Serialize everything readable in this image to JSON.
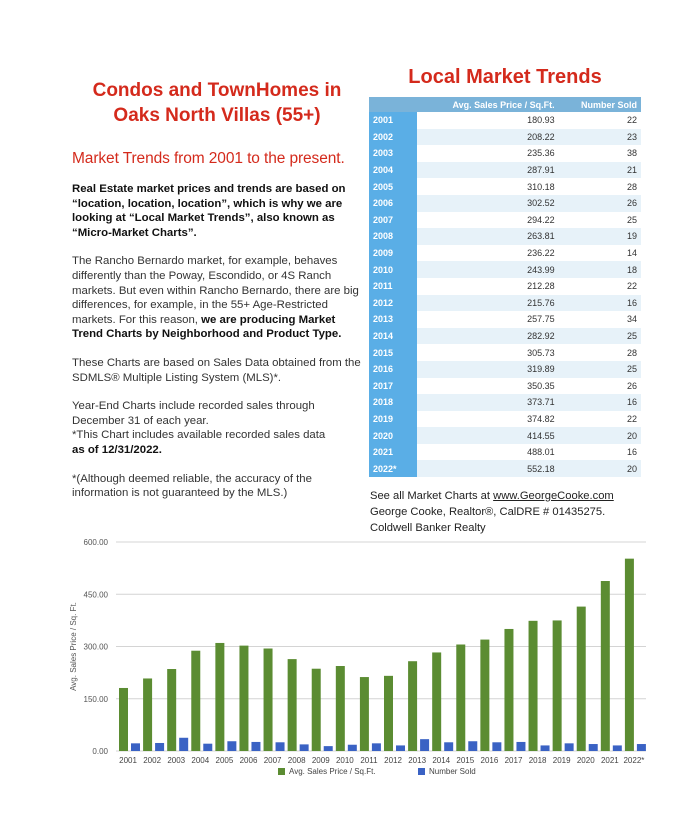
{
  "header": {
    "title": "Condos and TownHomes in\nOaks North Villas (55+)",
    "subtitle": "Market Trends from 2001 to the present."
  },
  "text": {
    "p1": "Real Estate market prices and trends are based on “location, location, location”, which is why we are looking at “Local Market Trends”, also known as “Micro-Market Charts”.",
    "p2_a": "The Rancho Bernardo market, for example, behaves differently than the Poway, Escondido, or 4S Ranch markets.  But even within Rancho Bernardo, there are big differences, for example, in the 55+ Age-Restricted markets. For this reason, ",
    "p2_b": "we are producing Market Trend Charts by Neighborhood and Product Type.",
    "p3": "These Charts are based on Sales Data obtained from the SDMLS® Multiple Listing System (MLS)*.",
    "p4_a": "Year-End Charts include recorded sales through December 31 of each year.",
    "p4_b": "*This Chart includes available recorded sales data",
    "p4_c": "as of 12/31/2022.",
    "p5": "*(Although deemed reliable, the accuracy of the information is not guaranteed by the MLS.)"
  },
  "table": {
    "title": "Local Market Trends",
    "col_year": "",
    "col_price": "Avg. Sales Price / Sq.Ft.",
    "col_sold": "Number Sold",
    "rows": [
      {
        "year": "2001",
        "price": "180.93",
        "sold": "22"
      },
      {
        "year": "2002",
        "price": "208.22",
        "sold": "23"
      },
      {
        "year": "2003",
        "price": "235.36",
        "sold": "38"
      },
      {
        "year": "2004",
        "price": "287.91",
        "sold": "21"
      },
      {
        "year": "2005",
        "price": "310.18",
        "sold": "28"
      },
      {
        "year": "2006",
        "price": "302.52",
        "sold": "26"
      },
      {
        "year": "2007",
        "price": "294.22",
        "sold": "25"
      },
      {
        "year": "2008",
        "price": "263.81",
        "sold": "19"
      },
      {
        "year": "2009",
        "price": "236.22",
        "sold": "14"
      },
      {
        "year": "2010",
        "price": "243.99",
        "sold": "18"
      },
      {
        "year": "2011",
        "price": "212.28",
        "sold": "22"
      },
      {
        "year": "2012",
        "price": "215.76",
        "sold": "16"
      },
      {
        "year": "2013",
        "price": "257.75",
        "sold": "34"
      },
      {
        "year": "2014",
        "price": "282.92",
        "sold": "25"
      },
      {
        "year": "2015",
        "price": "305.73",
        "sold": "28"
      },
      {
        "year": "2016",
        "price": "319.89",
        "sold": "25"
      },
      {
        "year": "2017",
        "price": "350.35",
        "sold": "26"
      },
      {
        "year": "2018",
        "price": "373.71",
        "sold": "16"
      },
      {
        "year": "2019",
        "price": "374.82",
        "sold": "22"
      },
      {
        "year": "2020",
        "price": "414.55",
        "sold": "20"
      },
      {
        "year": "2021",
        "price": "488.01",
        "sold": "16"
      },
      {
        "year": "2022*",
        "price": "552.18",
        "sold": "20"
      }
    ]
  },
  "credits": {
    "line1_prefix": "See all Market Charts at ",
    "link": "www.GeorgeCooke.com",
    "line2": "George Cooke, Realtor®, CalDRE # 01435275.",
    "line3": "Coldwell Banker Realty"
  },
  "colors": {
    "accent_red": "#d42a1c",
    "table_header": "#7ab3d9",
    "year_cell": "#5aaee6",
    "price_bar": "#5b8c32",
    "sold_bar": "#3a62c4"
  },
  "chart_data": {
    "type": "bar",
    "categories": [
      "2001",
      "2002",
      "2003",
      "2004",
      "2005",
      "2006",
      "2007",
      "2008",
      "2009",
      "2010",
      "2011",
      "2012",
      "2013",
      "2014",
      "2015",
      "2016",
      "2017",
      "2018",
      "2019",
      "2020",
      "2021",
      "2022*"
    ],
    "series": [
      {
        "name": "Avg. Sales Price / Sq.Ft.",
        "color": "#5b8c32",
        "values": [
          180.93,
          208.22,
          235.36,
          287.91,
          310.18,
          302.52,
          294.22,
          263.81,
          236.22,
          243.99,
          212.28,
          215.76,
          257.75,
          282.92,
          305.73,
          319.89,
          350.35,
          373.71,
          374.82,
          414.55,
          488.01,
          552.18
        ]
      },
      {
        "name": "Number Sold",
        "color": "#3a62c4",
        "values": [
          22,
          23,
          38,
          21,
          28,
          26,
          25,
          19,
          14,
          18,
          22,
          16,
          34,
          25,
          28,
          25,
          26,
          16,
          22,
          20,
          16,
          20
        ]
      }
    ],
    "ylabel": "Avg. Sales Price / Sq. Ft.",
    "xlabel": "",
    "ylim": [
      0,
      600
    ],
    "yticks": [
      "0.00",
      "150.00",
      "300.00",
      "450.00",
      "600.00"
    ],
    "grid": true,
    "legend_position": "bottom"
  }
}
